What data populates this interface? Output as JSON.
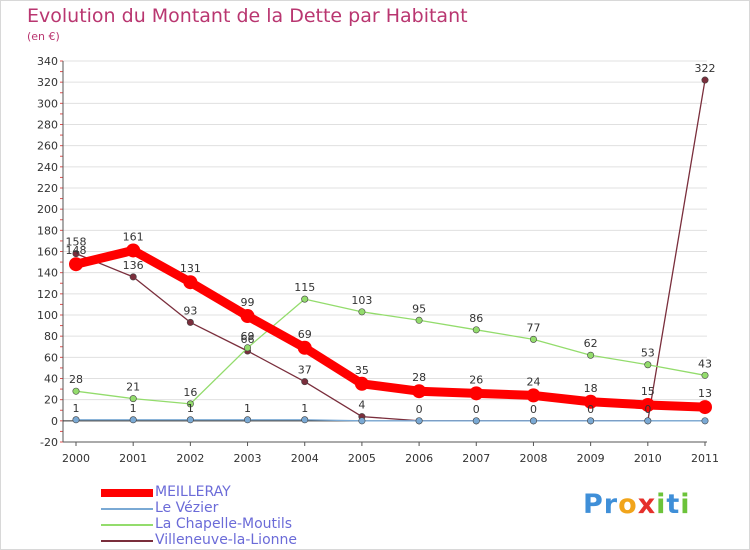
{
  "header": {
    "title": "Evolution du Montant de la Dette par Habitant",
    "subtitle": "(en €)"
  },
  "brand": {
    "logo_text": "Proxiti",
    "letters": [
      {
        "ch": "P",
        "color": "#3f8fd8"
      },
      {
        "ch": "r",
        "color": "#3f8fd8"
      },
      {
        "ch": "o",
        "color": "#f1a51b"
      },
      {
        "ch": "x",
        "color": "#e5302b"
      },
      {
        "ch": "i",
        "color": "#6cc33a"
      },
      {
        "ch": "t",
        "color": "#3f8fd8"
      },
      {
        "ch": "i",
        "color": "#6cc33a"
      }
    ]
  },
  "chart_data": {
    "type": "line",
    "title": "Evolution du Montant de la Dette par Habitant",
    "ylabel": "(en €)",
    "xlabel": "",
    "categories": [
      "2000",
      "2001",
      "2002",
      "2003",
      "2004",
      "2005",
      "2006",
      "2007",
      "2008",
      "2009",
      "2010",
      "2011"
    ],
    "ylim": [
      -20,
      340
    ],
    "yticks": [
      -20,
      0,
      20,
      40,
      60,
      80,
      100,
      120,
      140,
      160,
      180,
      200,
      220,
      240,
      260,
      280,
      300,
      320,
      340
    ],
    "grid": "horizontal",
    "legend_position": "bottom-left",
    "series": [
      {
        "name": "MEILLERAY",
        "color": "#ff0000",
        "style": "thick",
        "values": [
          148,
          161,
          131,
          99,
          69,
          35,
          28,
          26,
          24,
          18,
          15,
          13
        ],
        "labels": [
          "148",
          "161",
          "131",
          "99",
          "69",
          "35",
          "28",
          "26",
          "24",
          "18",
          "15",
          "13"
        ]
      },
      {
        "name": "Le Vézier",
        "color": "#7aa9d4",
        "style": "thin",
        "values": [
          1,
          1,
          1,
          1,
          1,
          0,
          0,
          0,
          0,
          0,
          0,
          0
        ],
        "labels": [
          "1",
          "1",
          "1",
          "1",
          "1",
          "",
          "",
          "",
          "",
          "",
          "",
          ""
        ]
      },
      {
        "name": "La Chapelle-Moutils",
        "color": "#93dc6c",
        "style": "thin",
        "values": [
          28,
          21,
          16,
          69,
          115,
          103,
          95,
          86,
          77,
          62,
          53,
          43
        ],
        "labels": [
          "28",
          "21",
          "16",
          "69",
          "115",
          "103",
          "95",
          "86",
          "77",
          "62",
          "53",
          "43"
        ]
      },
      {
        "name": "Villeneuve-la-Lionne",
        "color": "#7a2e3c",
        "style": "thin",
        "values": [
          158,
          136,
          93,
          66,
          37,
          4,
          0,
          0,
          0,
          0,
          0,
          322
        ],
        "labels": [
          "158",
          "136",
          "93",
          "66",
          "37",
          "4",
          "0",
          "0",
          "0",
          "0",
          "0",
          "322"
        ]
      }
    ]
  }
}
